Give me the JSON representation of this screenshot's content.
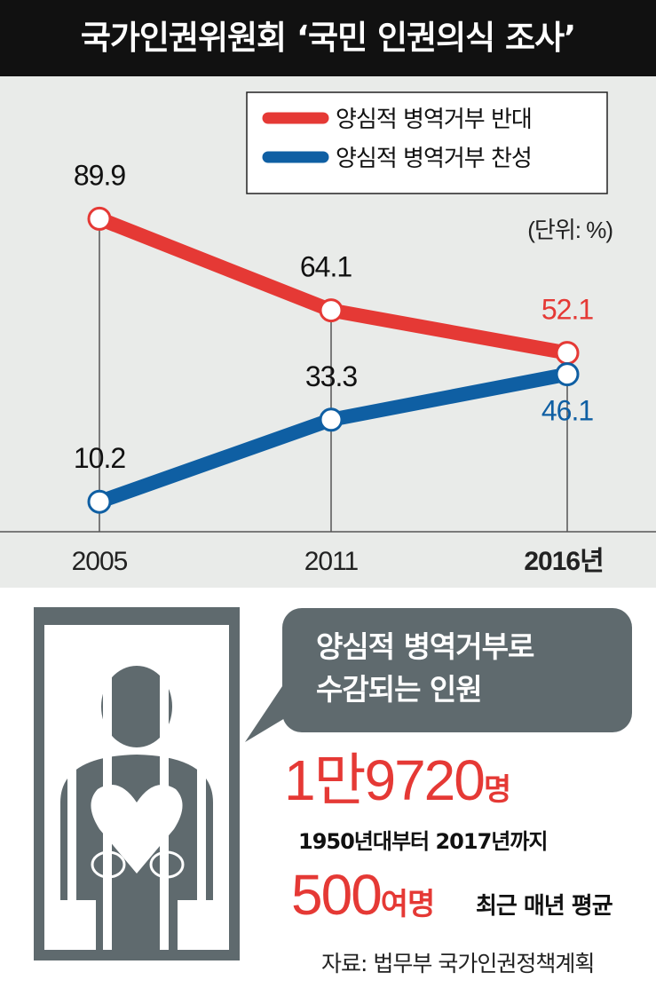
{
  "title": "국가인권위원회 ‘국민 인권의식 조사’",
  "colors": {
    "oppose": "#e53935",
    "support": "#0f5fa3",
    "header_bg": "#111111",
    "chart_bg": "#e9ebe9",
    "figure": "#5f6a6e"
  },
  "chart_data": {
    "type": "line",
    "title": "국가인권위원회 ‘국민 인권의식 조사’",
    "x": [
      "2005",
      "2011",
      "2016년"
    ],
    "unit": "(단위: %)",
    "ylim": [
      0,
      100
    ],
    "grid": false,
    "legend_position": "top-right",
    "series": [
      {
        "name": "양심적 병역거부 반대",
        "color": "#e53935",
        "values": [
          89.9,
          64.1,
          52.1
        ],
        "labels": [
          "89.9",
          "64.1",
          "52.1"
        ]
      },
      {
        "name": "양심적 병역거부 찬성",
        "color": "#0f5fa3",
        "values": [
          10.2,
          33.3,
          46.1
        ],
        "labels": [
          "10.2",
          "33.3",
          "46.1"
        ]
      }
    ]
  },
  "infographic": {
    "icon": "prisoner-behind-bars-icon",
    "bubble_text": [
      "양심적 병역거부로",
      "수감되는 인원"
    ],
    "total_number": "1만9720",
    "total_unit": "명",
    "total_period": "1950년대부터 2017년까지",
    "annual_number": "500",
    "annual_unit": "여명",
    "annual_desc": "최근 매년 평균"
  },
  "source": "자료: 법무부 국가인권정책계획"
}
